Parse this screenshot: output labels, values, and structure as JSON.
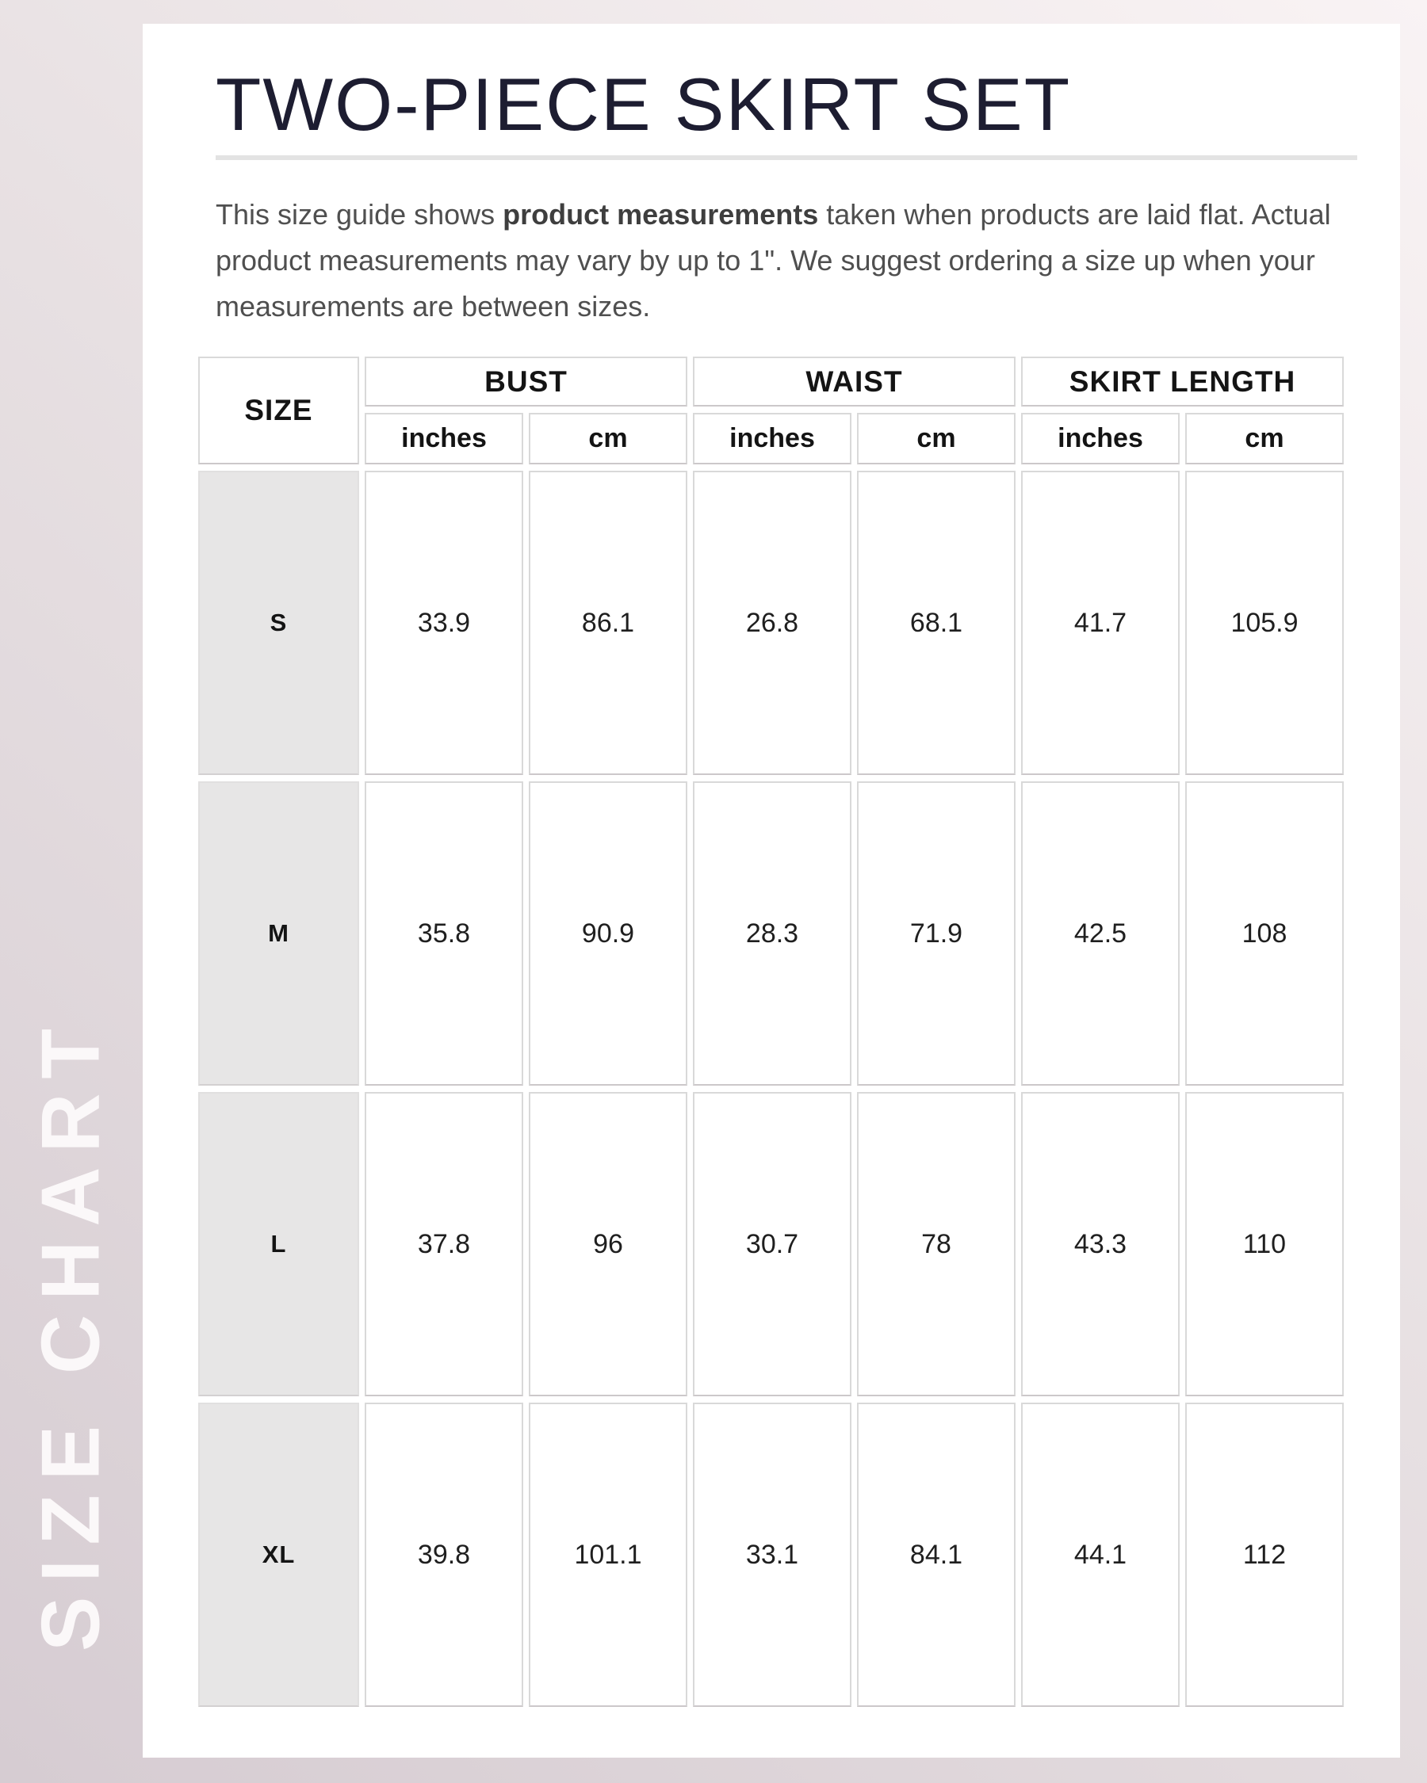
{
  "page": {
    "sidebar_label": "SIZE CHART",
    "title": "TWO-PIECE SKIRT SET",
    "description": {
      "part1": "This size guide shows ",
      "bold": "product measurements",
      "part2": " taken when products are laid flat. Actual product measurements may vary by up to 1\". We suggest ordering a size up when your measurements are between sizes."
    }
  },
  "colors": {
    "background_gradient_start": "#f9f3f4",
    "background_gradient_end": "#d6ccd2",
    "card_background": "#ffffff",
    "title_text": "#1d1d31",
    "body_text": "#4f4f4f",
    "sidebar_label_text": "#fbf8f9",
    "table_border": "#d9d9d9",
    "size_cell_background": "#e7e6e6"
  },
  "chart_data": {
    "type": "table",
    "title": "TWO-PIECE SKIRT SET",
    "corner_header": "SIZE",
    "groups": [
      {
        "label": "BUST"
      },
      {
        "label": "WAIST"
      },
      {
        "label": "SKIRT LENGTH"
      }
    ],
    "unit_headers": [
      "inches",
      "cm",
      "inches",
      "cm",
      "inches",
      "cm"
    ],
    "rows": [
      {
        "size": "S",
        "values": [
          "33.9",
          "86.1",
          "26.8",
          "68.1",
          "41.7",
          "105.9"
        ]
      },
      {
        "size": "M",
        "values": [
          "35.8",
          "90.9",
          "28.3",
          "71.9",
          "42.5",
          "108"
        ]
      },
      {
        "size": "L",
        "values": [
          "37.8",
          "96",
          "30.7",
          "78",
          "43.3",
          "110"
        ]
      },
      {
        "size": "XL",
        "values": [
          "39.8",
          "101.1",
          "33.1",
          "84.1",
          "44.1",
          "112"
        ]
      }
    ]
  }
}
